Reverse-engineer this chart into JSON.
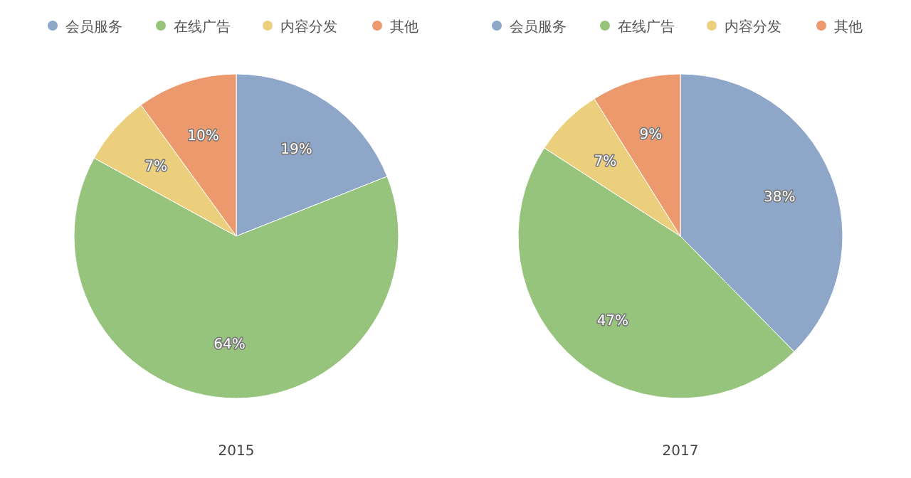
{
  "chart_data": [
    {
      "type": "pie",
      "xlabel": "2015",
      "categories": [
        "会员服务",
        "在线广告",
        "内容分发",
        "其他"
      ],
      "values": [
        19,
        64,
        7,
        10
      ],
      "value_labels": [
        "19%",
        "64%",
        "7%",
        "10%"
      ],
      "colors": [
        "#8ea6c8",
        "#96c47c",
        "#eccf7d",
        "#ec9a6d"
      ],
      "legend": "top"
    },
    {
      "type": "pie",
      "xlabel": "2017",
      "categories": [
        "会员服务",
        "在线广告",
        "内容分发",
        "其他"
      ],
      "values": [
        38,
        47,
        7,
        9
      ],
      "value_labels": [
        "38%",
        "47%",
        "7%",
        "9%"
      ],
      "colors": [
        "#8ea6c8",
        "#96c47c",
        "#eccf7d",
        "#ec9a6d"
      ],
      "legend": "top"
    }
  ]
}
